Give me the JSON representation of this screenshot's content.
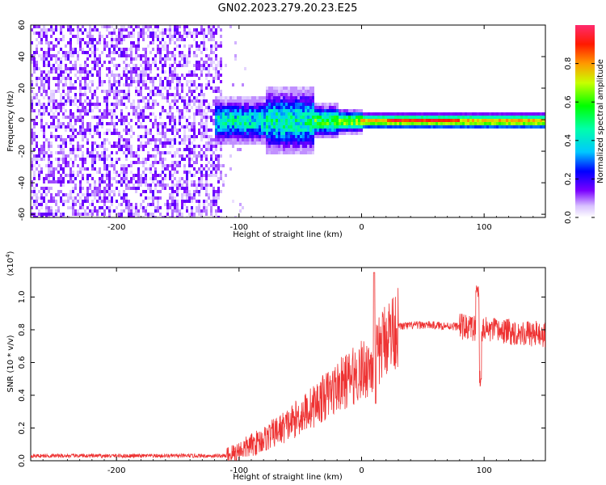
{
  "title": "GN02.2023.279.20.23.E25",
  "chart_data": [
    {
      "type": "heatmap",
      "xlabel": "Height of straight line (km)",
      "ylabel": "Frequency (Hz)",
      "xlim": [
        -270,
        150
      ],
      "ylim": [
        -62,
        60
      ],
      "xticks": [
        "-200",
        "-100",
        "0",
        "100"
      ],
      "yticks": [
        "-60",
        "-40",
        "-20",
        "0",
        "20",
        "40",
        "60"
      ],
      "colorbar": {
        "label": "Normalized spectral amplitude",
        "ticks": [
          "0.0",
          "0.2",
          "0.4",
          "0.6",
          "0.8"
        ],
        "range": [
          0,
          1
        ]
      },
      "noise_region_x": [
        -270,
        -115
      ],
      "signal_start_x": -120,
      "band_center_hz": 0
    },
    {
      "type": "line",
      "xlabel": "Height of straight line (km)",
      "ylabel": "SNR (10 * v/v)",
      "multiplier": "(x10",
      "multiplier_exp": "4",
      "multiplier_close": ")",
      "xlim": [
        -270,
        150
      ],
      "ylim": [
        0,
        1.18
      ],
      "xticks": [
        "-200",
        "-100",
        "0",
        "100"
      ],
      "yticks": [
        "0.0",
        "0.2",
        "0.4",
        "0.6",
        "0.8",
        "1.0"
      ],
      "color": "#ee3333",
      "profile": [
        {
          "x": -270,
          "y": 0.03
        },
        {
          "x": -110,
          "y": 0.03
        },
        {
          "x": -100,
          "y": 0.06
        },
        {
          "x": -80,
          "y": 0.13
        },
        {
          "x": -60,
          "y": 0.22
        },
        {
          "x": -40,
          "y": 0.33
        },
        {
          "x": -20,
          "y": 0.45
        },
        {
          "x": 0,
          "y": 0.55
        },
        {
          "x": 10,
          "y": 0.6
        },
        {
          "x": 20,
          "y": 0.76
        },
        {
          "x": 30,
          "y": 0.82
        },
        {
          "x": 50,
          "y": 0.83
        },
        {
          "x": 80,
          "y": 0.82
        },
        {
          "x": 100,
          "y": 0.8
        },
        {
          "x": 150,
          "y": 0.77
        }
      ]
    }
  ]
}
